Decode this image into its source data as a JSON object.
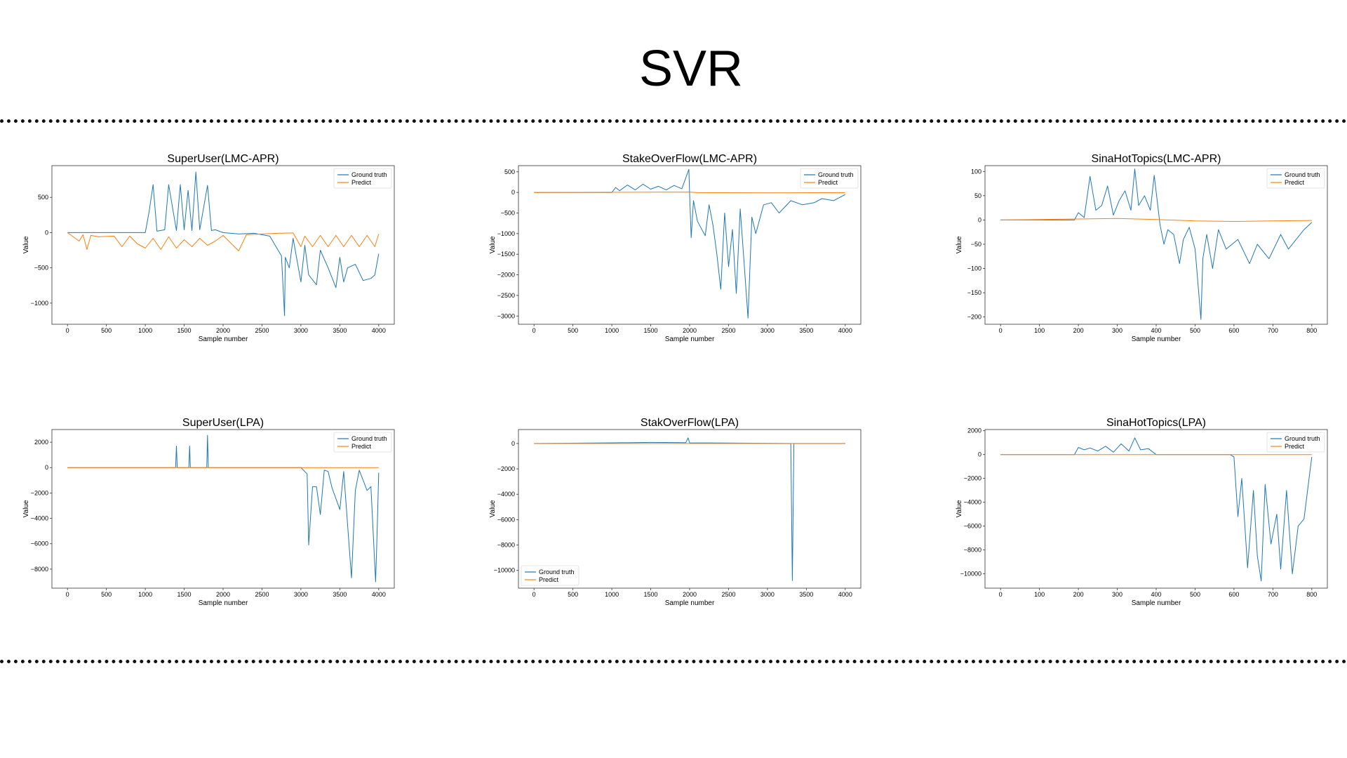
{
  "page": {
    "title": "SVR",
    "colors": {
      "ground_truth": "#1f77b4",
      "predict": "#ff7f0e"
    }
  },
  "chart_data": [
    {
      "type": "line",
      "title": "SuperUser(LMC-APR)",
      "xlabel": "Sample number",
      "ylabel": "Value",
      "xlim": [
        -200,
        4200
      ],
      "ylim": [
        -1300,
        950
      ],
      "xticks": [
        0,
        500,
        1000,
        1500,
        2000,
        2500,
        3000,
        3500,
        4000
      ],
      "yticks": [
        500,
        0,
        -500,
        -1000
      ],
      "legend": "top-right",
      "series": [
        {
          "name": "Ground truth",
          "color": "#1f77b4",
          "x": [
            0,
            1000,
            1050,
            1100,
            1150,
            1250,
            1300,
            1400,
            1450,
            1500,
            1550,
            1600,
            1650,
            1700,
            1800,
            1850,
            1900,
            2000,
            2100,
            2200,
            2400,
            2600,
            2750,
            2790,
            2800,
            2850,
            2900,
            3000,
            3050,
            3100,
            3200,
            3250,
            3350,
            3450,
            3500,
            3550,
            3600,
            3700,
            3800,
            3900,
            3950,
            4000
          ],
          "y": [
            0,
            0,
            300,
            680,
            20,
            40,
            680,
            30,
            680,
            40,
            600,
            30,
            860,
            40,
            670,
            30,
            40,
            0,
            -10,
            -20,
            -10,
            -50,
            -330,
            -1180,
            -350,
            -500,
            -80,
            -700,
            -180,
            -600,
            -740,
            -250,
            -500,
            -780,
            -350,
            -700,
            -500,
            -450,
            -680,
            -650,
            -600,
            -300
          ]
        },
        {
          "name": "Predict",
          "color": "#ff7f0e",
          "x": [
            0,
            150,
            200,
            250,
            300,
            400,
            600,
            700,
            800,
            900,
            1000,
            1100,
            1200,
            1300,
            1400,
            1500,
            1600,
            1700,
            1800,
            1900,
            2000,
            2100,
            2200,
            2300,
            2500,
            2700,
            2900,
            3000,
            3050,
            3150,
            3250,
            3350,
            3450,
            3550,
            3650,
            3750,
            3850,
            3950,
            4000
          ],
          "y": [
            0,
            -120,
            -30,
            -240,
            -40,
            -60,
            -50,
            -200,
            -50,
            -160,
            -220,
            -80,
            -240,
            -60,
            -220,
            -100,
            -200,
            -80,
            -180,
            -120,
            -40,
            -150,
            -260,
            -30,
            -20,
            -10,
            -5,
            -200,
            -50,
            -200,
            -40,
            -200,
            -40,
            -200,
            -40,
            -200,
            -40,
            -200,
            -20
          ]
        }
      ]
    },
    {
      "type": "line",
      "title": "StakeOverFlow(LMC-APR)",
      "xlabel": "Sample number",
      "ylabel": "Value",
      "xlim": [
        -200,
        4200
      ],
      "ylim": [
        -3200,
        650
      ],
      "xticks": [
        0,
        500,
        1000,
        1500,
        2000,
        2500,
        3000,
        3500,
        4000
      ],
      "yticks": [
        500,
        0,
        -500,
        -1000,
        -1500,
        -2000,
        -2500,
        -3000
      ],
      "legend": "top-right",
      "series": [
        {
          "name": "Ground truth",
          "color": "#1f77b4",
          "x": [
            0,
            1000,
            1050,
            1100,
            1200,
            1300,
            1400,
            1500,
            1600,
            1700,
            1800,
            1900,
            1990,
            2000,
            2020,
            2050,
            2100,
            2200,
            2250,
            2300,
            2350,
            2400,
            2450,
            2500,
            2550,
            2600,
            2650,
            2700,
            2750,
            2800,
            2850,
            2950,
            3050,
            3150,
            3300,
            3450,
            3600,
            3700,
            3850,
            4000
          ],
          "y": [
            0,
            0,
            120,
            40,
            180,
            60,
            200,
            80,
            150,
            60,
            170,
            90,
            560,
            -50,
            -1100,
            -200,
            -700,
            -1050,
            -300,
            -800,
            -1500,
            -2350,
            -500,
            -1800,
            -900,
            -2450,
            -400,
            -1700,
            -3050,
            -600,
            -1000,
            -300,
            -250,
            -500,
            -200,
            -300,
            -250,
            -150,
            -200,
            -50
          ]
        },
        {
          "name": "Predict",
          "color": "#ff7f0e",
          "x": [
            0,
            1000,
            2000,
            2100,
            3000,
            4000
          ],
          "y": [
            0,
            5,
            10,
            -5,
            -10,
            -5
          ]
        }
      ]
    },
    {
      "type": "line",
      "title": "SinaHotTopics(LMC-APR)",
      "xlabel": "Sample number",
      "ylabel": "Value",
      "xlim": [
        -40,
        840
      ],
      "ylim": [
        -215,
        112
      ],
      "xticks": [
        0,
        100,
        200,
        300,
        400,
        500,
        600,
        700,
        800
      ],
      "yticks": [
        100,
        50,
        0,
        -50,
        -100,
        -150,
        -200
      ],
      "legend": "top-right",
      "series": [
        {
          "name": "Ground truth",
          "color": "#1f77b4",
          "x": [
            0,
            190,
            200,
            215,
            230,
            245,
            260,
            275,
            290,
            305,
            320,
            335,
            345,
            355,
            370,
            385,
            395,
            410,
            420,
            430,
            445,
            460,
            470,
            485,
            500,
            515,
            520,
            530,
            545,
            560,
            580,
            610,
            640,
            660,
            690,
            720,
            740,
            760,
            780,
            800
          ],
          "y": [
            0,
            0,
            15,
            5,
            90,
            20,
            30,
            70,
            10,
            40,
            60,
            20,
            105,
            30,
            50,
            20,
            92,
            -10,
            -50,
            -20,
            -30,
            -90,
            -40,
            -15,
            -60,
            -205,
            -80,
            -30,
            -100,
            -20,
            -60,
            -40,
            -90,
            -50,
            -80,
            -30,
            -60,
            -40,
            -20,
            -5
          ]
        },
        {
          "name": "Predict",
          "color": "#ff7f0e",
          "x": [
            0,
            100,
            200,
            300,
            400,
            500,
            600,
            700,
            800
          ],
          "y": [
            0,
            1,
            2,
            3,
            1,
            -2,
            -3,
            -2,
            -1
          ]
        }
      ]
    },
    {
      "type": "line",
      "title": "SuperUser(LPA)",
      "xlabel": "Sample number",
      "ylabel": "Value",
      "xlim": [
        -200,
        4200
      ],
      "ylim": [
        -9500,
        3000
      ],
      "xticks": [
        0,
        500,
        1000,
        1500,
        2000,
        2500,
        3000,
        3500,
        4000
      ],
      "yticks": [
        2000,
        0,
        -2000,
        -4000,
        -6000,
        -8000
      ],
      "legend": "top-right",
      "series": [
        {
          "name": "Ground truth",
          "color": "#1f77b4",
          "x": [
            0,
            1000,
            1390,
            1400,
            1410,
            1560,
            1570,
            1580,
            1790,
            1800,
            1810,
            2000,
            3000,
            3080,
            3100,
            3150,
            3200,
            3250,
            3300,
            3350,
            3400,
            3500,
            3550,
            3650,
            3700,
            3750,
            3850,
            3900,
            3960,
            3980,
            4000
          ],
          "y": [
            0,
            0,
            0,
            1700,
            0,
            0,
            1700,
            0,
            0,
            2550,
            0,
            0,
            0,
            -500,
            -6100,
            -1500,
            -1500,
            -3700,
            -200,
            -300,
            -1600,
            -3300,
            -300,
            -8700,
            -1800,
            -200,
            -1800,
            -1500,
            -9000,
            -5000,
            -400
          ]
        },
        {
          "name": "Predict",
          "color": "#ff7f0e",
          "x": [
            0,
            2000,
            4000
          ],
          "y": [
            0,
            0,
            0
          ]
        }
      ]
    },
    {
      "type": "line",
      "title": "StakOverFlow(LPA)",
      "xlabel": "Sample number",
      "ylabel": "Value",
      "xlim": [
        -200,
        4200
      ],
      "ylim": [
        -11400,
        1100
      ],
      "xticks": [
        0,
        500,
        1000,
        1500,
        2000,
        2500,
        3000,
        3500,
        4000
      ],
      "yticks": [
        0,
        -2000,
        -4000,
        -6000,
        -8000,
        -10000
      ],
      "legend": "bottom-left",
      "series": [
        {
          "name": "Ground truth",
          "color": "#1f77b4",
          "x": [
            0,
            1000,
            1500,
            1950,
            1980,
            2000,
            2500,
            3300,
            3320,
            3340,
            4000
          ],
          "y": [
            0,
            50,
            80,
            60,
            450,
            50,
            30,
            0,
            -10800,
            0,
            0
          ]
        },
        {
          "name": "Predict",
          "color": "#ff7f0e",
          "x": [
            0,
            2000,
            4000
          ],
          "y": [
            0,
            0,
            0
          ]
        }
      ]
    },
    {
      "type": "line",
      "title": "SinaHotTopics(LPA)",
      "xlabel": "Sample number",
      "ylabel": "Value",
      "xlim": [
        -40,
        840
      ],
      "ylim": [
        -11200,
        2100
      ],
      "xticks": [
        0,
        100,
        200,
        300,
        400,
        500,
        600,
        700,
        800
      ],
      "yticks": [
        2000,
        0,
        -2000,
        -4000,
        -6000,
        -8000,
        -10000
      ],
      "legend": "top-right",
      "series": [
        {
          "name": "Ground truth",
          "color": "#1f77b4",
          "x": [
            0,
            190,
            200,
            215,
            230,
            250,
            270,
            290,
            310,
            330,
            345,
            360,
            380,
            400,
            590,
            600,
            610,
            620,
            635,
            650,
            660,
            670,
            680,
            695,
            710,
            720,
            735,
            750,
            765,
            780,
            795,
            800
          ],
          "y": [
            0,
            0,
            600,
            400,
            550,
            300,
            700,
            200,
            900,
            300,
            1400,
            400,
            500,
            0,
            0,
            -200,
            -5200,
            -2000,
            -9500,
            -3000,
            -8500,
            -10600,
            -2500,
            -7500,
            -5000,
            -9600,
            -3000,
            -10000,
            -6000,
            -5400,
            -1500,
            -200
          ]
        },
        {
          "name": "Predict",
          "color": "#ff7f0e",
          "x": [
            0,
            400,
            800
          ],
          "y": [
            0,
            0,
            0
          ]
        }
      ]
    }
  ]
}
